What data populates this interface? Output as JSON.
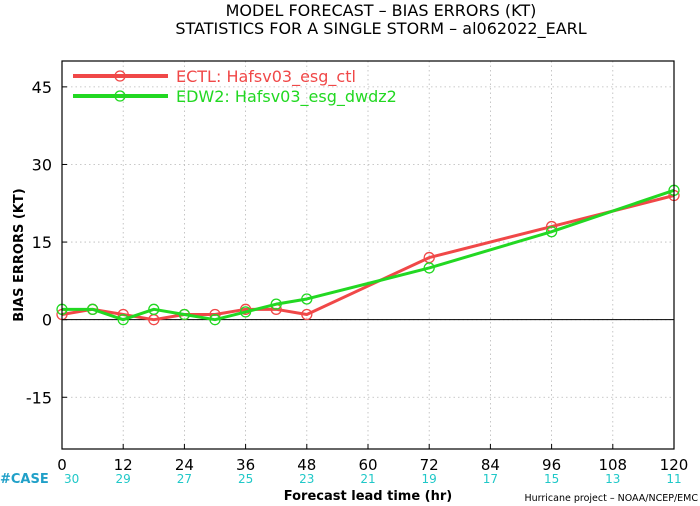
{
  "header": {
    "title": "MODEL FORECAST – BIAS ERRORS (KT)",
    "subtitle": "STATISTICS FOR A SINGLE STORM – al062022_EARL"
  },
  "footer": {
    "credit": "Hurricane project – NOAA/NCEP/EMC"
  },
  "chart_data": {
    "type": "line",
    "xlabel": "Forecast lead time (hr)",
    "ylabel": "BIAS ERRORS (KT)",
    "xlim": [
      0,
      120
    ],
    "ylim": [
      -25,
      50
    ],
    "x_ticks": [
      0,
      12,
      24,
      36,
      48,
      60,
      72,
      84,
      96,
      108,
      120
    ],
    "y_ticks": [
      -15,
      0,
      15,
      30,
      45
    ],
    "grid": true,
    "legend_position": "top-left",
    "zero_line": true,
    "case_label": "#CASE",
    "cases": [
      30,
      29,
      27,
      25,
      23,
      21,
      19,
      17,
      15,
      13,
      11
    ],
    "series": [
      {
        "name": "ECTL: Hafsv03_esg_ctl",
        "color": "#f04848",
        "x": [
          0,
          6,
          12,
          18,
          24,
          30,
          36,
          42,
          48,
          72,
          96,
          120
        ],
        "y": [
          1,
          2,
          1,
          0,
          1,
          1,
          2,
          2,
          1,
          12,
          18,
          24
        ]
      },
      {
        "name": "EDW2: Hafsv03_esg_dwdz2",
        "color": "#22d822",
        "x": [
          0,
          6,
          12,
          18,
          24,
          30,
          36,
          42,
          48,
          72,
          96,
          120
        ],
        "y": [
          2,
          2,
          0,
          2,
          1,
          0,
          1.5,
          3,
          4,
          10,
          17,
          25
        ]
      }
    ],
    "colors": {
      "case_label": "#20a0c8",
      "case_values": "#20c8c8"
    }
  }
}
